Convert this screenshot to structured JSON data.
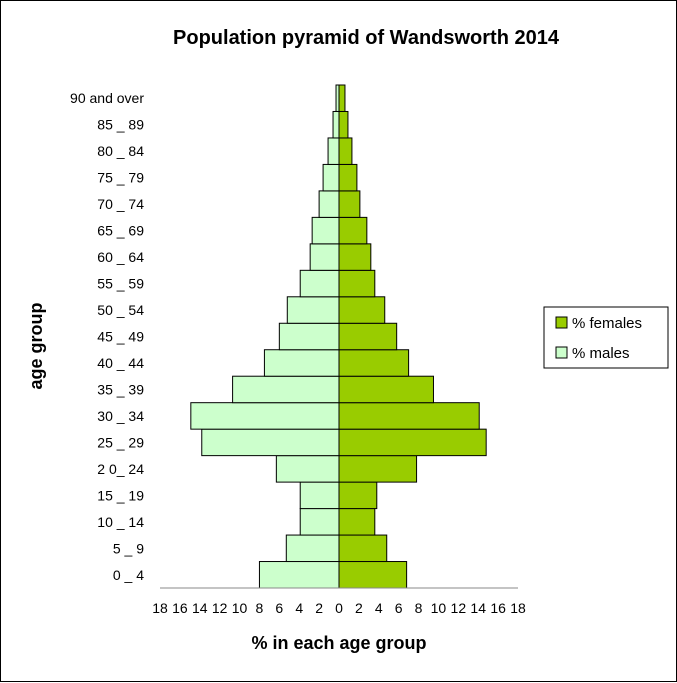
{
  "chart_data": {
    "type": "bar",
    "orientation": "horizontal",
    "title": "Population pyramid  of Wandsworth 2014",
    "xlabel": "% in each age group",
    "ylabel": "age group",
    "categories": [
      "0 _ 4",
      "5 _ 9",
      "10 _ 14",
      "15 _ 19",
      "2 0_ 24",
      "25 _ 29",
      "30 _ 34",
      "35 _ 39",
      "40 _ 44",
      "45 _ 49",
      "50 _ 54",
      "55 _ 59",
      "60 _ 64",
      "65 _ 69",
      "70 _ 74",
      "75 _ 79",
      "80 _ 84",
      "85 _ 89",
      "90 and over"
    ],
    "series": [
      {
        "name": "% females",
        "color": "#99cc00",
        "values": [
          6.8,
          4.8,
          3.6,
          3.8,
          7.8,
          14.8,
          14.1,
          9.5,
          7.0,
          5.8,
          4.6,
          3.6,
          3.2,
          2.8,
          2.1,
          1.8,
          1.3,
          0.9,
          0.6
        ]
      },
      {
        "name": "% males",
        "color": "#ccffcc",
        "values": [
          8.0,
          5.3,
          3.9,
          3.9,
          6.3,
          13.8,
          14.9,
          10.7,
          7.5,
          6.0,
          5.2,
          3.9,
          2.9,
          2.7,
          2.0,
          1.6,
          1.1,
          0.6,
          0.3
        ]
      }
    ],
    "xlim": [
      -18,
      18
    ],
    "xticks": [
      "18",
      "16",
      "14",
      "12",
      "10",
      "8",
      "6",
      "4",
      "2",
      "0",
      "2",
      "4",
      "6",
      "8",
      "10",
      "12",
      "14",
      "16",
      "18"
    ],
    "grid": false,
    "legend_position": "right"
  }
}
